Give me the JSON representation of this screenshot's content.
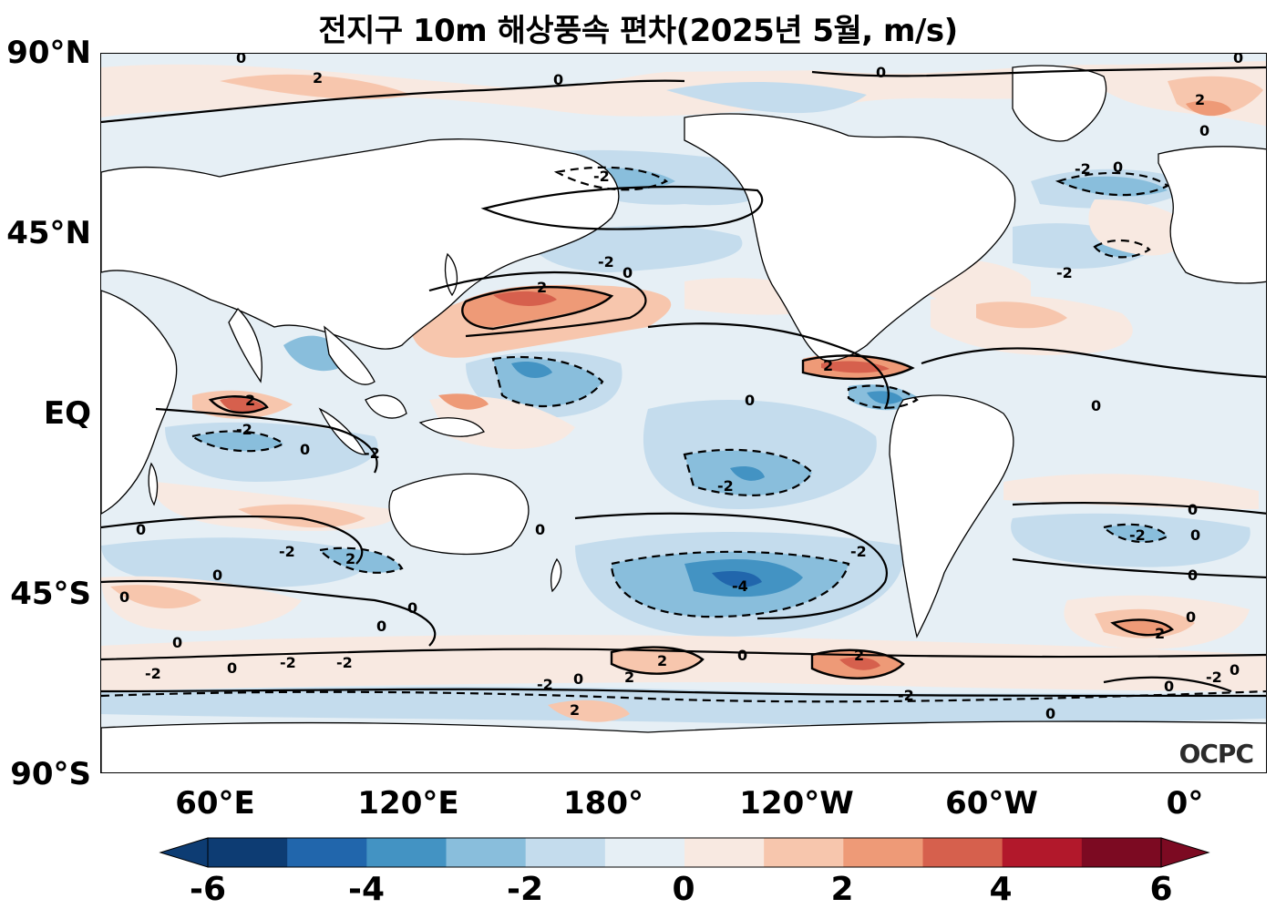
{
  "title": "전지구 10m 해상풍속 편차(2025년 5월, m/s)",
  "lat_labels": [
    "90°N",
    "45°N",
    "EQ",
    "45°S",
    "90°S"
  ],
  "lon_labels": [
    "60°E",
    "120°E",
    "180°",
    "120°W",
    "60°W",
    "0°"
  ],
  "colorbar": {
    "ticks": [
      "-6",
      "-4",
      "-2",
      "0",
      "2",
      "4",
      "6"
    ],
    "colors": [
      "#0d3c73",
      "#2166ac",
      "#4393c3",
      "#89bedc",
      "#c4dced",
      "#e6eff5",
      "#f8e9e1",
      "#f7c6ad",
      "#ee9a77",
      "#d6604d",
      "#b2182b",
      "#7c0a22"
    ]
  },
  "watermark": "OCPC",
  "contour_labels": {
    "zero": "0",
    "neg2": "-2",
    "pos2": "2",
    "neg4": "-4"
  }
}
